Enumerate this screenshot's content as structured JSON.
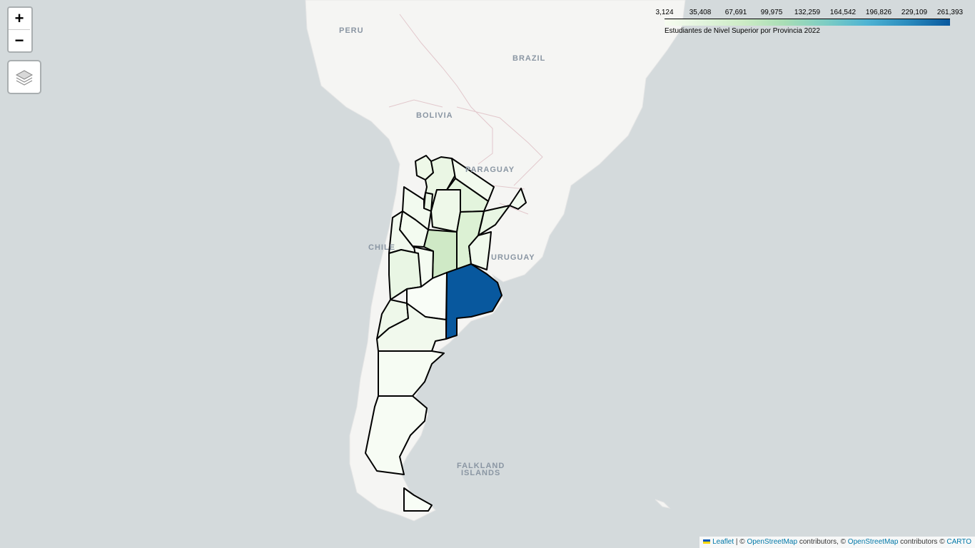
{
  "map": {
    "zoom_in_label": "+",
    "zoom_out_label": "−",
    "layers_icon": "layers-icon",
    "country_labels": {
      "peru": "PERU",
      "brazil": "BRAZIL",
      "bolivia": "BOLIVIA",
      "paraguay": "PARAGUAY",
      "chile": "CHILE",
      "uruguay": "URUGUAY",
      "falkland_1": "FALKLAND",
      "falkland_2": "ISLANDS"
    },
    "colors": {
      "ocean": "#d4dadc",
      "land": "#f5f5f3",
      "highlight": "#08589e"
    }
  },
  "legend": {
    "ticks": [
      "3,124",
      "35,408",
      "67,691",
      "99,975",
      "132,259",
      "164,542",
      "196,826",
      "229,109",
      "261,393"
    ],
    "caption": "Estudiantes de Nivel Superior por Provincia 2022",
    "colors": [
      "#f7fcf0",
      "#e0f3db",
      "#ccebc5",
      "#a8ddb5",
      "#7bccc4",
      "#4eb3d3",
      "#2b8cbe",
      "#08589e"
    ]
  },
  "attribution": {
    "leaflet": "Leaflet",
    "sep": " | © ",
    "osm1": "OpenStreetMap",
    "contrib1": " contributors, © ",
    "osm2": "OpenStreetMap",
    "contrib2": " contributors © ",
    "carto": "CARTO"
  }
}
